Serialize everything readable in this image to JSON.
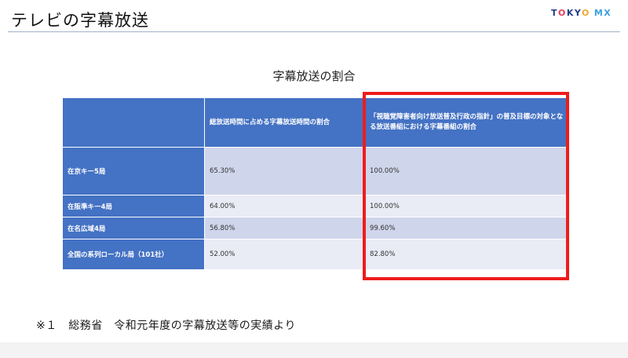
{
  "header": {
    "title": "テレビの字幕放送",
    "logo_tokyo_t": "T",
    "logo_tokyo_o1": "O",
    "logo_tokyo_ky": "KY",
    "logo_tokyo_o2": "O",
    "logo_mx": "MX"
  },
  "table": {
    "title": "字幕放送の割合",
    "headers": [
      "",
      "総放送時間に占める字幕放送時間の割合",
      "「視聴覚障害者向け放送普及行政の指針」の普及目標の対象となる放送番組における字幕番組の割合"
    ],
    "rows": [
      {
        "label": "在京キー5局",
        "total_ratio": "65.30%",
        "target_ratio": "100.00%"
      },
      {
        "label": "在阪準キー4局",
        "total_ratio": "64.00%",
        "target_ratio": "100.00%"
      },
      {
        "label": "在名広域4局",
        "total_ratio": "56.80%",
        "target_ratio": "99.60%"
      },
      {
        "label": "全国の系列ローカル局（101社）",
        "total_ratio": "52.00%",
        "target_ratio": "82.80%"
      }
    ],
    "highlight_color": "#ee1c1c",
    "header_color": "#4472c4"
  },
  "footnote": "※１　総務省　令和元年度の字幕放送等の実績より"
}
